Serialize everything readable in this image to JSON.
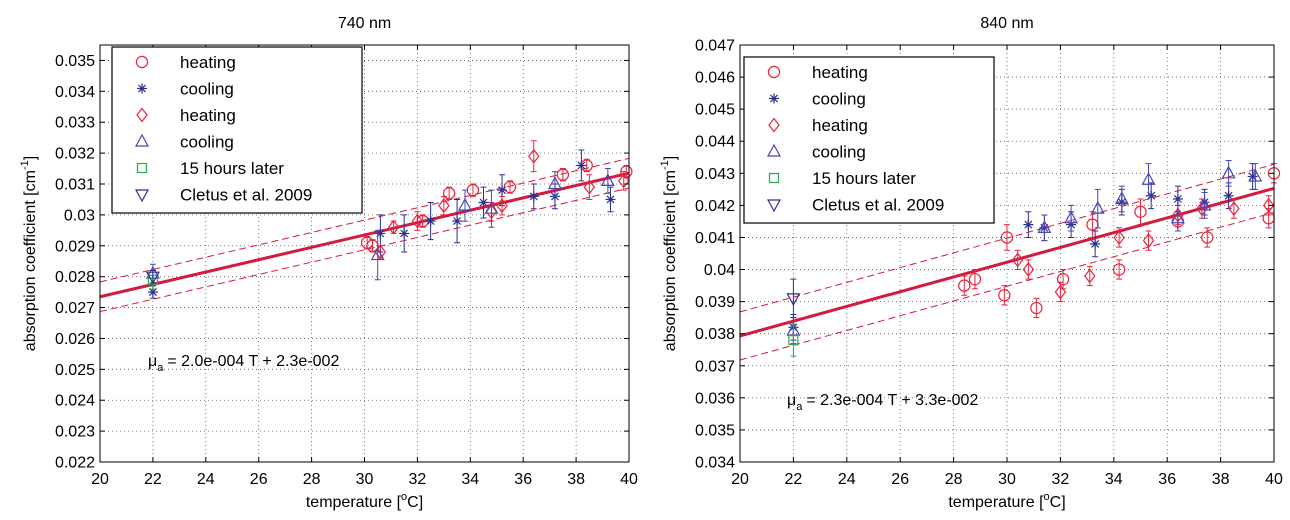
{
  "chart_data": [
    {
      "type": "scatter",
      "title": "740 nm",
      "xlabel": "temperature [",
      "xlabel_sup": "o",
      "xlabel_end": "C]",
      "ylabel": "absorption coefficient [cm",
      "ylabel_sup": "-1",
      "ylabel_end": "]",
      "xlim": [
        20,
        40
      ],
      "ylim": [
        0.022,
        0.0355
      ],
      "xticks": [
        20,
        22,
        24,
        26,
        28,
        30,
        32,
        34,
        36,
        38,
        40
      ],
      "xtick_labels": [
        "20",
        "22",
        "24",
        "26",
        "28",
        "30",
        "32",
        "34",
        "36",
        "38",
        "40"
      ],
      "yticks": [
        0.022,
        0.023,
        0.024,
        0.025,
        0.026,
        0.027,
        0.028,
        0.029,
        0.03,
        0.031,
        0.032,
        0.033,
        0.034,
        0.035
      ],
      "ytick_labels": [
        "0.022",
        "0.023",
        "0.024",
        "0.025",
        "0.026",
        "0.027",
        "0.028",
        "0.029",
        "0.03",
        "0.031",
        "0.032",
        "0.033",
        "0.034",
        "0.035"
      ],
      "grid": true,
      "legend_placement": "top-left",
      "legend": [
        {
          "label": "heating",
          "marker": "circle",
          "color": "#e8253c"
        },
        {
          "label": "cooling",
          "marker": "star",
          "color": "#2d2f8f"
        },
        {
          "label": "heating",
          "marker": "diamond",
          "color": "#e8253c"
        },
        {
          "label": "cooling",
          "marker": "triangle-up",
          "color": "#4b45b5"
        },
        {
          "label": "15 hours later",
          "marker": "square",
          "color": "#2aa84a"
        },
        {
          "label": "Cletus et al. 2009",
          "marker": "triangle-down",
          "color": "#2d2f8f"
        }
      ],
      "annotation_mu": "μ",
      "annotation_sub": "a",
      "annotation_text": "=  2.0e-004 T + 2.3e-002",
      "fit": {
        "slope": 0.0002,
        "intercept": 0.02335,
        "color": "#d41a3e",
        "band": 0.00048
      },
      "series": [
        {
          "name": "heating",
          "marker": "circle",
          "color": "#e8253c",
          "points": [
            [
              30.1,
              0.0291,
              0.0002
            ],
            [
              30.3,
              0.029,
              0.0002
            ],
            [
              32.2,
              0.0298,
              0.0002
            ],
            [
              33.2,
              0.0307,
              0.0002
            ],
            [
              34.1,
              0.0308,
              0.0002
            ],
            [
              35.5,
              0.0309,
              0.0002
            ],
            [
              37.5,
              0.0313,
              0.0002
            ],
            [
              38.4,
              0.0316,
              0.0002
            ],
            [
              39.9,
              0.0314,
              0.0002
            ]
          ]
        },
        {
          "name": "cooling",
          "marker": "star",
          "color": "#2d2f8f",
          "points": [
            [
              22,
              0.0275,
              0.0002
            ],
            [
              30.6,
              0.0294,
              0.0006
            ],
            [
              31.5,
              0.0294,
              0.0006
            ],
            [
              32.5,
              0.0298,
              0.0006
            ],
            [
              33.5,
              0.0298,
              0.0007
            ],
            [
              34.5,
              0.0304,
              0.0005
            ],
            [
              35.2,
              0.0308,
              0.0005
            ],
            [
              36.4,
              0.0306,
              0.0004
            ],
            [
              37.2,
              0.0306,
              0.0004
            ],
            [
              38.2,
              0.0316,
              0.0005
            ],
            [
              39.3,
              0.0305,
              0.0004
            ]
          ]
        },
        {
          "name": "heating",
          "marker": "diamond",
          "color": "#e8253c",
          "points": [
            [
              30.6,
              0.0288,
              0.0002
            ],
            [
              31.1,
              0.0296,
              0.0002
            ],
            [
              32.0,
              0.0298,
              0.0003
            ],
            [
              33.0,
              0.0303,
              0.0003
            ],
            [
              34.8,
              0.0301,
              0.0003
            ],
            [
              35.2,
              0.0303,
              0.0003
            ],
            [
              36.4,
              0.0319,
              0.0005
            ],
            [
              38.5,
              0.0309,
              0.0004
            ],
            [
              39.8,
              0.0311,
              0.0003
            ]
          ]
        },
        {
          "name": "cooling",
          "marker": "triangle-up",
          "color": "#4b45b5",
          "points": [
            [
              22,
              0.0281,
              0.0003
            ],
            [
              30.5,
              0.0287,
              0.0008
            ],
            [
              33.8,
              0.0303,
              0.0005
            ],
            [
              34.8,
              0.0302,
              0.0006
            ],
            [
              37.2,
              0.031,
              0.0004
            ],
            [
              39.2,
              0.0311,
              0.0004
            ]
          ]
        },
        {
          "name": "15 hours later",
          "marker": "square",
          "color": "#2aa84a",
          "points": [
            [
              22,
              0.0279,
              0.0003
            ]
          ]
        },
        {
          "name": "Cletus et al. 2009",
          "marker": "triangle-down",
          "color": "#2d2f8f",
          "points": [
            [
              22,
              0.028,
              0.0002
            ]
          ]
        }
      ]
    },
    {
      "type": "scatter",
      "title": "840 nm",
      "xlabel": "temperature [",
      "xlabel_sup": "o",
      "xlabel_end": "C]",
      "ylabel": "absorption coefficient [cm",
      "ylabel_sup": "-1",
      "ylabel_end": "]",
      "xlim": [
        20,
        40
      ],
      "ylim": [
        0.034,
        0.047
      ],
      "xticks": [
        20,
        22,
        24,
        26,
        28,
        30,
        32,
        34,
        36,
        38,
        40
      ],
      "xtick_labels": [
        "20",
        "22",
        "24",
        "26",
        "28",
        "30",
        "32",
        "34",
        "36",
        "38",
        "40"
      ],
      "yticks": [
        0.034,
        0.035,
        0.036,
        0.037,
        0.038,
        0.039,
        0.04,
        0.041,
        0.042,
        0.043,
        0.044,
        0.045,
        0.046,
        0.047
      ],
      "ytick_labels": [
        "0.034",
        "0.035",
        "0.036",
        "0.037",
        "0.038",
        "0.039",
        "0.04",
        "0.041",
        "0.042",
        "0.043",
        "0.044",
        "0.045",
        "0.046",
        "0.047"
      ],
      "grid": true,
      "legend_placement": "top-left",
      "legend": [
        {
          "label": "heating",
          "marker": "circle",
          "color": "#e8253c"
        },
        {
          "label": "cooling",
          "marker": "star",
          "color": "#2d2f8f"
        },
        {
          "label": "heating",
          "marker": "diamond",
          "color": "#e8253c"
        },
        {
          "label": "cooling",
          "marker": "triangle-up",
          "color": "#4b45b5"
        },
        {
          "label": "15 hours later",
          "marker": "square",
          "color": "#2aa84a"
        },
        {
          "label": "Cletus et al. 2009",
          "marker": "triangle-down",
          "color": "#2d2f8f"
        }
      ],
      "annotation_mu": "μ",
      "annotation_sub": "a",
      "annotation_text": "=  2.3e-004 T + 3.3e-002",
      "fit": {
        "slope": 0.00023,
        "intercept": 0.03333,
        "color": "#d41a3e",
        "band": 0.00075
      },
      "series": [
        {
          "name": "heating",
          "marker": "circle",
          "color": "#e8253c",
          "points": [
            [
              28.4,
              0.0395,
              0.0003
            ],
            [
              28.8,
              0.0397,
              0.0003
            ],
            [
              29.9,
              0.0392,
              0.0003
            ],
            [
              30.0,
              0.041,
              0.0004
            ],
            [
              31.1,
              0.0388,
              0.0003
            ],
            [
              32.1,
              0.0397,
              0.0003
            ],
            [
              33.2,
              0.0414,
              0.0004
            ],
            [
              34.2,
              0.04,
              0.0003
            ],
            [
              35.0,
              0.0418,
              0.0004
            ],
            [
              36.4,
              0.0415,
              0.0003
            ],
            [
              37.5,
              0.041,
              0.0003
            ],
            [
              40.0,
              0.043,
              0.0003
            ],
            [
              39.8,
              0.0416,
              0.0003
            ]
          ]
        },
        {
          "name": "cooling",
          "marker": "star",
          "color": "#2d2f8f",
          "points": [
            [
              22,
              0.0382,
              0.0004
            ],
            [
              30.8,
              0.0414,
              0.0004
            ],
            [
              31.4,
              0.0413,
              0.0004
            ],
            [
              32.4,
              0.0414,
              0.0004
            ],
            [
              33.3,
              0.0408,
              0.0004
            ],
            [
              34.3,
              0.0421,
              0.0004
            ],
            [
              35.4,
              0.0423,
              0.0004
            ],
            [
              36.4,
              0.0422,
              0.0004
            ],
            [
              37.4,
              0.0421,
              0.0004
            ],
            [
              38.3,
              0.0423,
              0.0004
            ],
            [
              39.2,
              0.0429,
              0.0004
            ]
          ]
        },
        {
          "name": "heating",
          "marker": "diamond",
          "color": "#e8253c",
          "points": [
            [
              30.4,
              0.0403,
              0.0003
            ],
            [
              30.8,
              0.04,
              0.0003
            ],
            [
              32.0,
              0.0393,
              0.0003
            ],
            [
              33.1,
              0.0398,
              0.0003
            ],
            [
              34.2,
              0.041,
              0.0003
            ],
            [
              35.3,
              0.0409,
              0.0003
            ],
            [
              36.4,
              0.0417,
              0.0003
            ],
            [
              37.3,
              0.0419,
              0.0003
            ],
            [
              38.5,
              0.0419,
              0.0003
            ],
            [
              39.8,
              0.042,
              0.0003
            ]
          ]
        },
        {
          "name": "cooling",
          "marker": "triangle-up",
          "color": "#4b45b5",
          "points": [
            [
              22,
              0.0381,
              0.0004
            ],
            [
              31.4,
              0.0413,
              0.0004
            ],
            [
              32.4,
              0.0416,
              0.0004
            ],
            [
              33.4,
              0.0419,
              0.0006
            ],
            [
              34.3,
              0.0422,
              0.0004
            ],
            [
              35.3,
              0.0428,
              0.0005
            ],
            [
              36.4,
              0.0416,
              0.0004
            ],
            [
              37.4,
              0.042,
              0.0004
            ],
            [
              38.3,
              0.043,
              0.0004
            ],
            [
              39.3,
              0.0429,
              0.0004
            ]
          ]
        },
        {
          "name": "15 hours later",
          "marker": "square",
          "color": "#2aa84a",
          "points": [
            [
              22,
              0.0378,
              0.0005
            ]
          ]
        },
        {
          "name": "Cletus et al. 2009",
          "marker": "triangle-down",
          "color": "#2d2f8f",
          "points": [
            [
              22,
              0.0391,
              0.0006
            ]
          ]
        }
      ]
    }
  ]
}
